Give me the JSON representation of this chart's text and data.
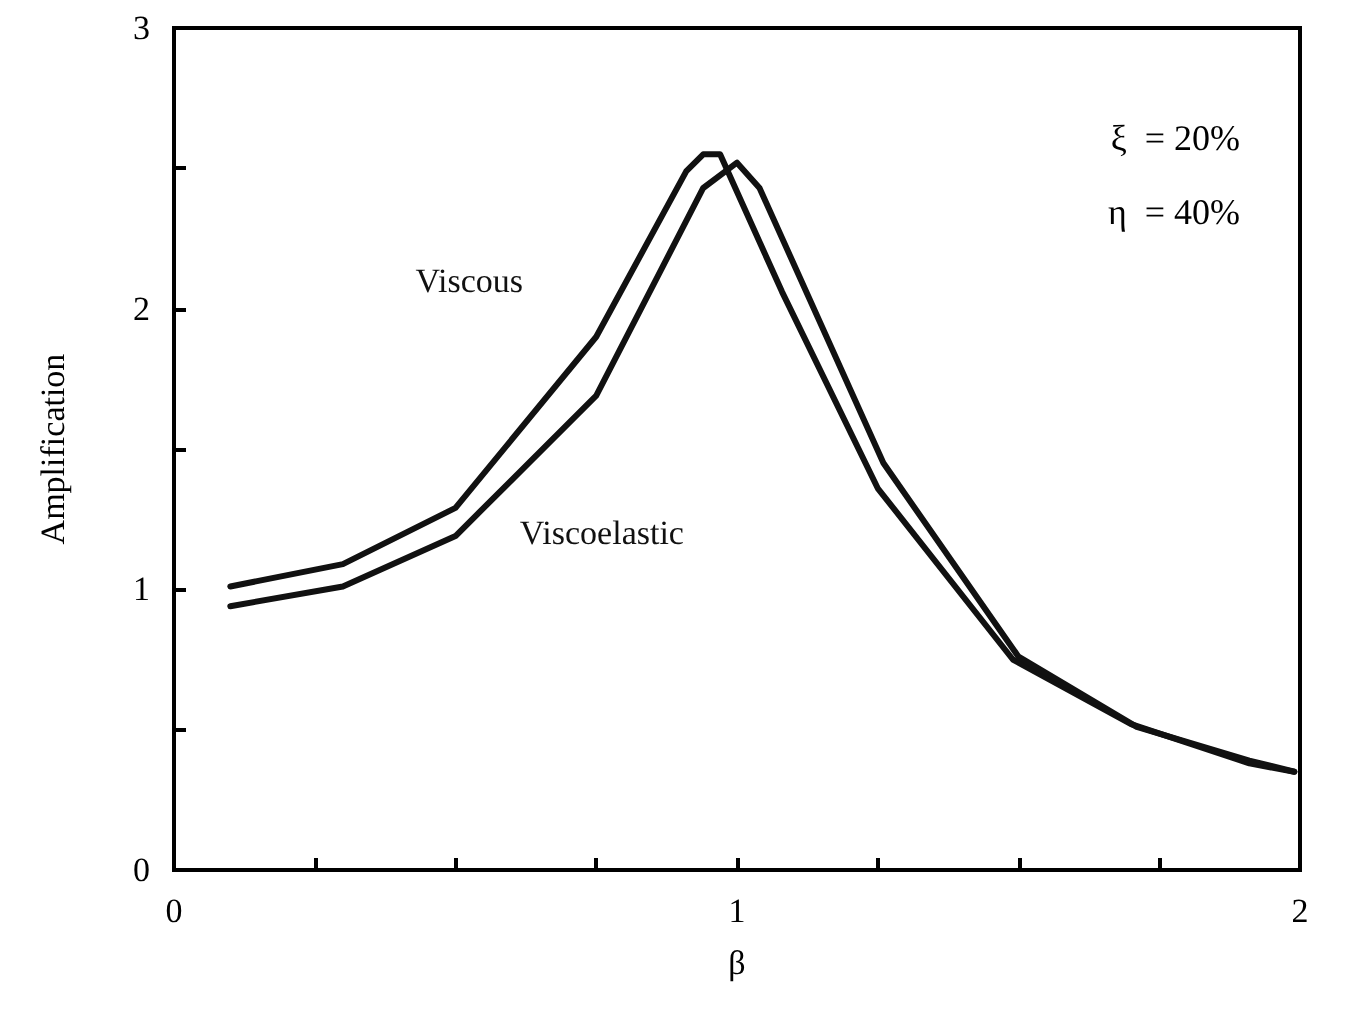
{
  "chart_data": {
    "type": "line",
    "xlabel": "β",
    "ylabel": "Amplification",
    "xlim": [
      0,
      2
    ],
    "xticks": [
      0,
      {
        "value": 0.25,
        "label": null
      },
      {
        "value": 0.5,
        "label": null
      },
      {
        "value": 0.75,
        "label": null
      },
      1,
      {
        "value": 1.25,
        "label": null
      },
      {
        "value": 1.5,
        "label": null
      },
      {
        "value": 1.75,
        "label": null
      },
      2
    ],
    "ylim": [
      0,
      3
    ],
    "yticks": [
      0,
      {
        "value": 0.5,
        "label": null
      },
      1,
      {
        "value": 1.5,
        "label": null
      },
      2,
      {
        "value": 2.5,
        "label": null
      },
      3
    ],
    "series": [
      {
        "name": "Viscous",
        "color": "#111111",
        "x": [
          0.1,
          0.3,
          0.5,
          0.75,
          0.91,
          0.94,
          0.97,
          1.08,
          1.25,
          1.49,
          1.7,
          1.91,
          1.99
        ],
        "values": [
          1.01,
          1.09,
          1.29,
          1.9,
          2.49,
          2.55,
          2.55,
          2.06,
          1.36,
          0.75,
          0.52,
          0.38,
          0.35
        ]
      },
      {
        "name": "Viscoelastic",
        "color": "#111111",
        "x": [
          0.1,
          0.3,
          0.5,
          0.75,
          0.94,
          1.0,
          1.04,
          1.26,
          1.5,
          1.71,
          1.91,
          1.99
        ],
        "values": [
          0.94,
          1.01,
          1.19,
          1.69,
          2.43,
          2.52,
          2.43,
          1.45,
          0.76,
          0.51,
          0.39,
          0.35
        ]
      }
    ],
    "annotations": [
      "ξ  = 20%",
      "η  = 40%"
    ],
    "legend": false,
    "grid": false,
    "marker": "none",
    "line_style": "solid"
  }
}
